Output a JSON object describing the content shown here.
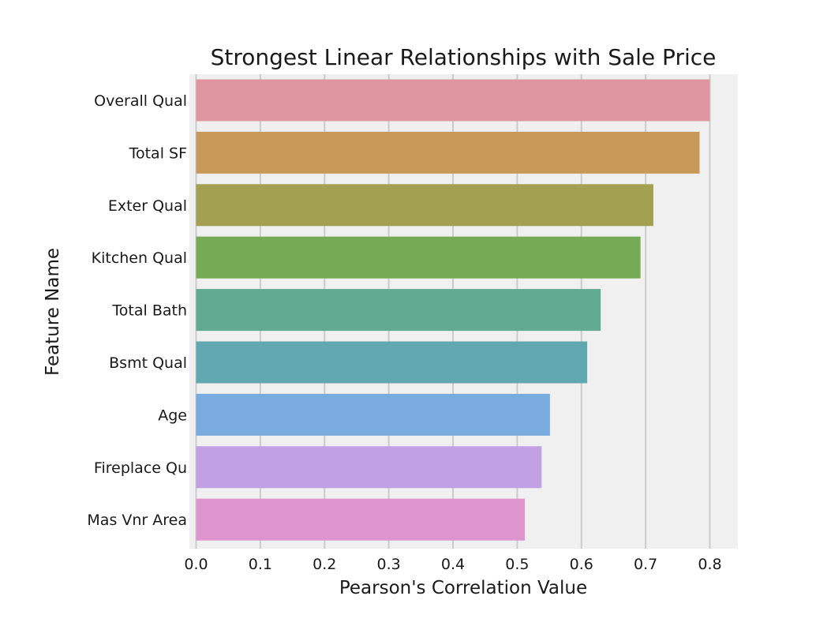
{
  "chart_data": {
    "type": "bar",
    "orientation": "horizontal",
    "title": "Strongest Linear Relationships with Sale Price",
    "xlabel": "Pearson's Correlation Value",
    "ylabel": "Feature Name",
    "categories": [
      "Overall Qual",
      "Total SF",
      "Exter Qual",
      "Kitchen Qual",
      "Total Bath",
      "Bsmt Qual",
      "Age",
      "Fireplace Qu",
      "Mas Vnr Area"
    ],
    "values": [
      0.8,
      0.784,
      0.712,
      0.692,
      0.63,
      0.609,
      0.551,
      0.538,
      0.512
    ],
    "xlim": [
      0,
      0.84
    ],
    "xticks": [
      "0.0",
      "0.1",
      "0.2",
      "0.3",
      "0.4",
      "0.5",
      "0.6",
      "0.7",
      "0.8"
    ],
    "grid": "vertical",
    "legend": "none",
    "background_color": "#f0f0f0",
    "colors": [
      "#e096a0",
      "#c89a5a",
      "#a3a052",
      "#75ab54",
      "#62aa92",
      "#62a8b0",
      "#7aabde",
      "#c1a1e3",
      "#de95cd"
    ]
  }
}
